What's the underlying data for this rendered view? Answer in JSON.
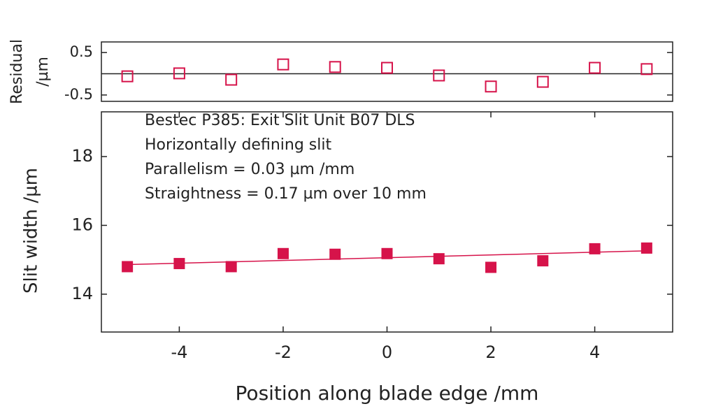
{
  "chart_data": [
    {
      "type": "scatter",
      "ylabel": [
        "Residual",
        "/µm"
      ],
      "x": [
        -5,
        -4,
        -3,
        -2,
        -1,
        0,
        1,
        2,
        3,
        4,
        5
      ],
      "values": [
        -0.06,
        0.01,
        -0.14,
        0.22,
        0.16,
        0.14,
        -0.04,
        -0.3,
        -0.19,
        0.14,
        0.11
      ],
      "color": "#d6134a",
      "marker": "open-square",
      "xlim": [
        -5.5,
        5.5
      ],
      "ylim": [
        -0.65,
        0.75
      ],
      "yticks": [
        -0.5,
        0.5
      ],
      "hline": 0
    },
    {
      "type": "scatter",
      "xlabel": "Position along blade edge /mm",
      "ylabel": "Slit width /µm",
      "annotations": [
        "Bestec P385: Exit Slit Unit B07 DLS",
        "Horizontally defining slit",
        "Parallelism =  0.03 µm /mm",
        "Straightness =  0.17 µm over 10 mm"
      ],
      "x": [
        -5,
        -4,
        -3,
        -2,
        -1,
        0,
        1,
        2,
        3,
        4,
        5
      ],
      "values": [
        14.8,
        14.89,
        14.8,
        15.18,
        15.16,
        15.18,
        15.03,
        14.78,
        14.97,
        15.32,
        15.34
      ],
      "color": "#d6134a",
      "marker": "filled-square",
      "fit": {
        "x": [
          -5,
          5
        ],
        "values": [
          14.86,
          15.26
        ]
      },
      "xlim": [
        -5.5,
        5.5
      ],
      "ylim": [
        12.9,
        19.3
      ],
      "xticks": [
        -4,
        -2,
        0,
        2,
        4
      ],
      "yticks": [
        14,
        16,
        18
      ]
    }
  ]
}
